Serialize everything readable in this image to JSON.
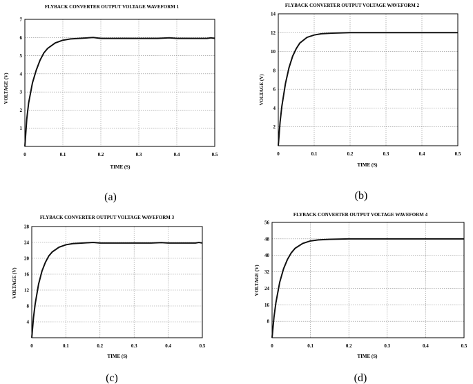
{
  "chart_data": [
    {
      "type": "line",
      "caption": "(a)",
      "title": "FLYBACK CONVERTER OUTPUT VOLTAGE WAVEFORM 1",
      "xlabel": "TIME (S)",
      "ylabel": "VOLTAGE (V)",
      "xlim": [
        0,
        0.5
      ],
      "ylim": [
        0,
        7
      ],
      "xticks": [
        "0",
        "0.1",
        "0.2",
        "0.3",
        "0.4",
        "0.5"
      ],
      "yticks": [
        "1",
        "2",
        "3",
        "4",
        "5",
        "6",
        "7"
      ],
      "grid": true,
      "series": [
        {
          "x": [
            0,
            0.005,
            0.01,
            0.02,
            0.03,
            0.04,
            0.05,
            0.06,
            0.08,
            0.1,
            0.12,
            0.15,
            0.18,
            0.2,
            0.25,
            0.3,
            0.35,
            0.38,
            0.4,
            0.45,
            0.48,
            0.49,
            0.5
          ],
          "y": [
            0,
            1.5,
            2.4,
            3.5,
            4.2,
            4.75,
            5.15,
            5.4,
            5.7,
            5.85,
            5.92,
            5.96,
            6.0,
            5.95,
            5.95,
            5.95,
            5.95,
            5.98,
            5.95,
            5.95,
            5.95,
            5.98,
            5.95
          ]
        }
      ]
    },
    {
      "type": "line",
      "caption": "(b)",
      "title": "FLYBACK CONVERTER OUTPUT VOLTAGE WAVEFORM 2",
      "xlabel": "TIME (S)",
      "ylabel": "VOLTAGE (V)",
      "xlim": [
        0,
        0.5
      ],
      "ylim": [
        0,
        14
      ],
      "xticks": [
        "0",
        "0.1",
        "0.2",
        "0.3",
        "0.4",
        "0.5"
      ],
      "yticks": [
        "2",
        "4",
        "6",
        "8",
        "10",
        "12",
        "14"
      ],
      "grid": true,
      "series": [
        {
          "x": [
            0,
            0.005,
            0.01,
            0.02,
            0.03,
            0.04,
            0.05,
            0.06,
            0.08,
            0.1,
            0.12,
            0.15,
            0.2,
            0.25,
            0.3,
            0.35,
            0.4,
            0.45,
            0.5
          ],
          "y": [
            0,
            2.5,
            4.2,
            6.6,
            8.3,
            9.5,
            10.3,
            10.9,
            11.5,
            11.75,
            11.88,
            11.95,
            12.0,
            12.0,
            12.0,
            12.0,
            12.0,
            12.0,
            12.0
          ]
        }
      ]
    },
    {
      "type": "line",
      "caption": "(c)",
      "title": "FLYBACK CONVERTER OUTPUT VOLTAGE WAVEFORM 3",
      "xlabel": "TIME (S)",
      "ylabel": "VOLTAGE (V)",
      "xlim": [
        0,
        0.5
      ],
      "ylim": [
        0,
        28
      ],
      "xticks": [
        "0",
        "0.1",
        "0.2",
        "0.3",
        "0.4",
        "0.5"
      ],
      "yticks": [
        "4",
        "8",
        "12",
        "16",
        "20",
        "24",
        "28"
      ],
      "grid": true,
      "series": [
        {
          "x": [
            0,
            0.005,
            0.01,
            0.02,
            0.03,
            0.04,
            0.05,
            0.06,
            0.08,
            0.1,
            0.12,
            0.15,
            0.18,
            0.2,
            0.25,
            0.3,
            0.35,
            0.38,
            0.4,
            0.45,
            0.48,
            0.49,
            0.5
          ],
          "y": [
            0,
            5,
            8.5,
            13.5,
            16.8,
            19.0,
            20.6,
            21.6,
            22.8,
            23.4,
            23.7,
            23.85,
            24.0,
            23.85,
            23.85,
            23.85,
            23.85,
            23.95,
            23.85,
            23.85,
            23.85,
            24.0,
            23.85
          ]
        }
      ]
    },
    {
      "type": "line",
      "caption": "(d)",
      "title": "FLYBACK CONVERTER OUTPUT VOLTAGE WAVEFORM 4",
      "xlabel": "TIME (S)",
      "ylabel": "VOLTAGE (V)",
      "xlim": [
        0,
        0.5
      ],
      "ylim": [
        0,
        56
      ],
      "xticks": [
        "0",
        "0.1",
        "0.2",
        "0.3",
        "0.4",
        "0.5"
      ],
      "yticks": [
        "8",
        "16",
        "24",
        "32",
        "40",
        "48",
        "56"
      ],
      "grid": true,
      "series": [
        {
          "x": [
            0,
            0.005,
            0.01,
            0.02,
            0.03,
            0.04,
            0.05,
            0.06,
            0.08,
            0.1,
            0.12,
            0.15,
            0.2,
            0.25,
            0.3,
            0.35,
            0.4,
            0.45,
            0.5
          ],
          "y": [
            0,
            10,
            17,
            27,
            33.5,
            38,
            41.2,
            43.4,
            45.8,
            47.0,
            47.5,
            47.8,
            48.0,
            48.0,
            48.0,
            48.0,
            48.0,
            48.0,
            48.0
          ]
        }
      ]
    }
  ]
}
